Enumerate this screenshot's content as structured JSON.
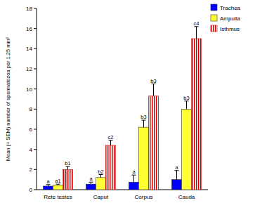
{
  "chart_data": {
    "type": "bar",
    "y_label": "Mean (+ SEM) number of spermatozoa per 1.25 mm²",
    "categories": [
      "Rete testes",
      "Caput",
      "Corpus",
      "Cauda"
    ],
    "series": [
      {
        "name": "Trachea",
        "color": "#0000ff",
        "values": [
          0.35,
          0.55,
          0.75,
          1.0
        ],
        "errors": [
          0.15,
          0.2,
          0.7,
          0.9
        ],
        "annotations": [
          "a",
          "a",
          "a",
          "a"
        ]
      },
      {
        "name": "Ampulla",
        "color": "#ffff33",
        "values": [
          0.45,
          1.2,
          6.2,
          8.0
        ],
        "errors": [
          0.1,
          0.3,
          0.7,
          0.8
        ],
        "annotations": [
          "a1",
          "b2",
          "b3",
          "b3"
        ]
      },
      {
        "name": "Isthmus",
        "color": "#cc0000",
        "values": [
          2.0,
          4.4,
          9.3,
          15.0
        ],
        "errors": [
          0.3,
          0.5,
          1.2,
          1.2
        ],
        "annotations": [
          "b1",
          "c2",
          "b3",
          "c4"
        ]
      }
    ],
    "ylim": [
      0,
      18
    ],
    "yticks": [
      0,
      2,
      4,
      6,
      8,
      10,
      12,
      14,
      16,
      18
    ],
    "grid": false,
    "legend": "upper right"
  }
}
